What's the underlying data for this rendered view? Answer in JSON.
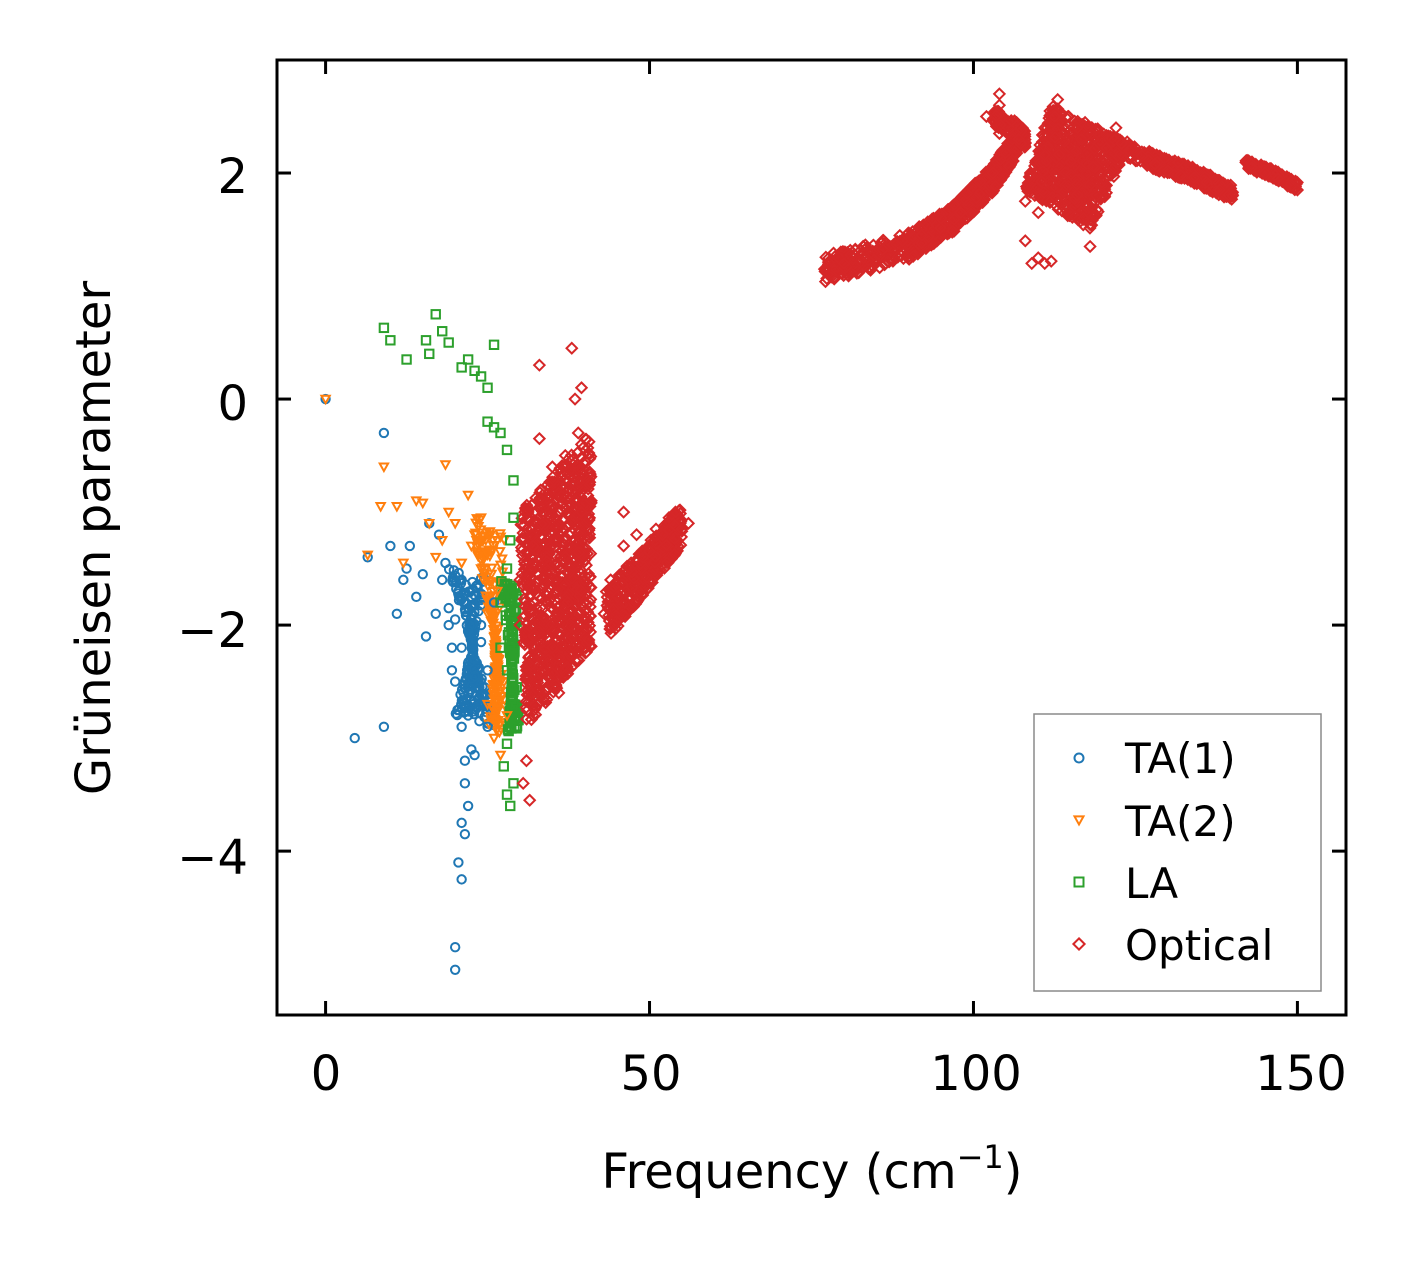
{
  "chart_data": {
    "type": "scatter",
    "title": "",
    "xlabel": "Frequency (cm",
    "xlabel_superscript": "−1",
    "xlabel_close": ")",
    "ylabel": "Grüneisen parameter",
    "xlim": [
      -7.5,
      157.5
    ],
    "ylim": [
      -5.45,
      3.0
    ],
    "xticks": [
      0,
      50,
      100,
      150
    ],
    "xtick_labels": [
      "0",
      "50",
      "100",
      "150"
    ],
    "yticks": [
      2,
      0,
      -2,
      -4
    ],
    "ytick_labels": [
      "2",
      "0",
      "−2",
      "−4"
    ],
    "grid": false,
    "legend_position": "lower-right",
    "series": [
      {
        "name": "TA(1)",
        "marker": "circle",
        "color": "#1f77b4",
        "points": [
          [
            0,
            0
          ],
          [
            4.5,
            -3.0
          ],
          [
            9,
            -2.9
          ],
          [
            9,
            -0.3
          ],
          [
            6.5,
            -1.4
          ],
          [
            10,
            -1.3
          ],
          [
            11,
            -1.9
          ],
          [
            12,
            -1.6
          ],
          [
            12.5,
            -1.5
          ],
          [
            13,
            -1.3
          ],
          [
            14,
            -1.75
          ],
          [
            15,
            -1.55
          ],
          [
            15.5,
            -2.1
          ],
          [
            16,
            -1.1
          ],
          [
            17,
            -1.9
          ],
          [
            17.5,
            -1.2
          ],
          [
            18,
            -1.6
          ],
          [
            19,
            -2.0
          ],
          [
            19.5,
            -2.4
          ],
          [
            20,
            -2.5
          ],
          [
            20.5,
            -1.7
          ],
          [
            21,
            -2.2
          ],
          [
            21,
            -2.9
          ],
          [
            21.5,
            -3.2
          ],
          [
            21.5,
            -3.4
          ],
          [
            22,
            -2.6
          ],
          [
            22,
            -3.6
          ],
          [
            22.5,
            -3.1
          ],
          [
            23,
            -2.3
          ],
          [
            23,
            -3.15
          ],
          [
            24,
            -2.0
          ],
          [
            24,
            -2.7
          ],
          [
            25,
            -2.4
          ],
          [
            26,
            -1.8
          ],
          [
            21,
            -3.75
          ],
          [
            21.5,
            -3.85
          ],
          [
            20.5,
            -4.1
          ],
          [
            21,
            -4.25
          ],
          [
            20,
            -4.85
          ],
          [
            20,
            -5.05
          ],
          [
            18.5,
            -1.45
          ],
          [
            19,
            -1.85
          ],
          [
            20,
            -1.95
          ],
          [
            21,
            -1.6
          ],
          [
            22,
            -2.05
          ],
          [
            22.5,
            -1.75
          ],
          [
            23,
            -2.45
          ],
          [
            24,
            -2.15
          ],
          [
            20.5,
            -2.75
          ],
          [
            21.5,
            -2.5
          ],
          [
            19.5,
            -2.2
          ],
          [
            22,
            -2.8
          ],
          [
            25,
            -2.9
          ]
        ]
      },
      {
        "name": "TA(2)",
        "marker": "triangle-down",
        "color": "#ff7f0e",
        "points": [
          [
            0,
            0
          ],
          [
            6.5,
            -1.38
          ],
          [
            9,
            -0.6
          ],
          [
            8.5,
            -0.95
          ],
          [
            11,
            -0.95
          ],
          [
            12,
            -1.45
          ],
          [
            14,
            -0.9
          ],
          [
            15,
            -0.92
          ],
          [
            16,
            -1.1
          ],
          [
            17,
            -1.4
          ],
          [
            18,
            -1.25
          ],
          [
            19,
            -1.0
          ],
          [
            20,
            -1.1
          ],
          [
            21,
            -1.45
          ],
          [
            22,
            -0.85
          ],
          [
            23,
            -1.2
          ],
          [
            24,
            -1.5
          ],
          [
            25,
            -1.9
          ],
          [
            26,
            -2.2
          ],
          [
            27,
            -2.5
          ],
          [
            28,
            -2.8
          ],
          [
            26,
            -3.0
          ],
          [
            27,
            -3.15
          ],
          [
            25,
            -2.7
          ],
          [
            18.5,
            -0.58
          ],
          [
            24,
            -1.05
          ],
          [
            22.5,
            -1.3
          ],
          [
            25.5,
            -1.35
          ],
          [
            26.5,
            -1.7
          ]
        ]
      },
      {
        "name": "LA",
        "marker": "square",
        "color": "#2ca02c",
        "points": [
          [
            9,
            0.63
          ],
          [
            10,
            0.52
          ],
          [
            12.5,
            0.35
          ],
          [
            15.5,
            0.52
          ],
          [
            16,
            0.4
          ],
          [
            17,
            0.75
          ],
          [
            18,
            0.6
          ],
          [
            19,
            0.5
          ],
          [
            21,
            0.28
          ],
          [
            22,
            0.35
          ],
          [
            23,
            0.25
          ],
          [
            24,
            0.2
          ],
          [
            25,
            0.1
          ],
          [
            26,
            0.48
          ],
          [
            25,
            -0.2
          ],
          [
            26,
            -0.25
          ],
          [
            27,
            -0.3
          ],
          [
            28,
            -0.45
          ],
          [
            29,
            -0.72
          ],
          [
            29,
            -1.05
          ],
          [
            28,
            -1.5
          ],
          [
            27,
            -1.8
          ],
          [
            29,
            -2.0
          ],
          [
            28,
            -2.4
          ],
          [
            29,
            -2.7
          ],
          [
            28,
            -3.05
          ],
          [
            27.5,
            -3.25
          ],
          [
            28,
            -3.5
          ],
          [
            28.5,
            -3.6
          ],
          [
            27,
            -2.2
          ],
          [
            28.5,
            -1.25
          ],
          [
            29.5,
            -2.55
          ],
          [
            28.5,
            -2.9
          ],
          [
            29,
            -3.4
          ]
        ]
      },
      {
        "name": "Optical",
        "marker": "diamond",
        "color": "#d62728",
        "points": [
          [
            30,
            -1.6
          ],
          [
            31,
            -2.4
          ],
          [
            32,
            -1.3
          ],
          [
            32,
            -2.8
          ],
          [
            33,
            -0.35
          ],
          [
            33,
            -1.05
          ],
          [
            34,
            -1.8
          ],
          [
            35,
            -0.6
          ],
          [
            35,
            -2.2
          ],
          [
            36,
            -1.1
          ],
          [
            36,
            -1.9
          ],
          [
            37,
            -0.5
          ],
          [
            37,
            -1.4
          ],
          [
            38,
            0.45
          ],
          [
            38.5,
            0.0
          ],
          [
            39,
            -0.3
          ],
          [
            39.5,
            -1.0
          ],
          [
            40,
            -1.6
          ],
          [
            38,
            -2.1
          ],
          [
            41,
            -0.9
          ],
          [
            31,
            -3.2
          ],
          [
            31.5,
            -3.55
          ],
          [
            30.5,
            -3.4
          ],
          [
            30,
            -2.0
          ],
          [
            33,
            0.3
          ],
          [
            34,
            -1.5
          ],
          [
            36,
            -2.6
          ],
          [
            39.5,
            0.1
          ],
          [
            43,
            -1.9
          ],
          [
            44,
            -1.6
          ],
          [
            45,
            -1.75
          ],
          [
            46,
            -1.3
          ],
          [
            47,
            -1.5
          ],
          [
            48,
            -1.2
          ],
          [
            49,
            -1.4
          ],
          [
            50,
            -1.35
          ],
          [
            51,
            -1.15
          ],
          [
            52,
            -1.2
          ],
          [
            53,
            -1.05
          ],
          [
            54,
            -1.0
          ],
          [
            55,
            -1.15
          ],
          [
            56,
            -1.1
          ],
          [
            44.5,
            -2.0
          ],
          [
            46,
            -1.0
          ],
          [
            48,
            -1.8
          ],
          [
            77,
            1.15
          ],
          [
            80,
            1.2
          ],
          [
            83,
            1.25
          ],
          [
            86,
            1.32
          ],
          [
            89,
            1.4
          ],
          [
            92,
            1.5
          ],
          [
            95,
            1.6
          ],
          [
            97,
            1.72
          ],
          [
            99,
            1.82
          ],
          [
            101,
            1.92
          ],
          [
            103,
            2.0
          ],
          [
            105,
            2.18
          ],
          [
            106,
            2.3
          ],
          [
            104,
            2.35
          ],
          [
            102,
            2.5
          ],
          [
            104,
            2.6
          ],
          [
            107,
            2.3
          ],
          [
            108,
            1.75
          ],
          [
            109,
            1.2
          ],
          [
            110,
            1.25
          ],
          [
            111,
            1.2
          ],
          [
            112,
            1.22
          ],
          [
            113,
            2.65
          ],
          [
            114,
            2.35
          ],
          [
            115,
            2.1
          ],
          [
            116,
            1.9
          ],
          [
            117,
            1.6
          ],
          [
            118,
            1.35
          ],
          [
            118.5,
            2.3
          ],
          [
            120,
            2.1
          ],
          [
            122,
            2.4
          ],
          [
            124,
            2.2
          ],
          [
            126,
            2.15
          ],
          [
            128,
            2.08
          ],
          [
            130,
            2.02
          ],
          [
            132,
            1.98
          ],
          [
            134,
            1.96
          ],
          [
            136,
            1.92
          ],
          [
            138,
            1.85
          ],
          [
            140,
            1.8
          ],
          [
            143,
            2.05
          ],
          [
            145,
            2.0
          ],
          [
            147,
            1.95
          ],
          [
            149,
            1.9
          ],
          [
            150,
            1.85
          ],
          [
            108,
            1.4
          ],
          [
            110,
            1.65
          ],
          [
            116,
            2.4
          ],
          [
            119,
            1.8
          ],
          [
            121,
            2.0
          ],
          [
            104,
            2.7
          ],
          [
            98,
            1.65
          ],
          [
            92,
            1.45
          ]
        ]
      }
    ]
  }
}
